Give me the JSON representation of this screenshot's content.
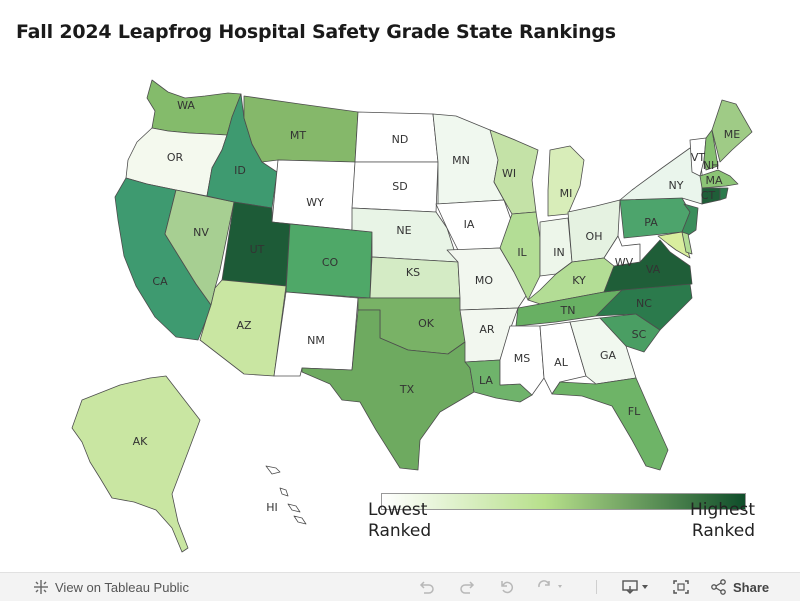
{
  "title": "Fall 2024 Leapfrog Hospital Safety Grade State Rankings",
  "legend": {
    "low_label": "Lowest\nRanked",
    "high_label": "Highest\nRanked",
    "color_low": "#ffffff",
    "color_mid": "#b7e08b",
    "color_high": "#0f4d2a"
  },
  "states": {
    "WA": {
      "label": "WA",
      "color": "#84bb6b"
    },
    "OR": {
      "label": "OR",
      "color": "#f4f9ee"
    },
    "CA": {
      "label": "CA",
      "color": "#3e9a70"
    },
    "NV": {
      "label": "NV",
      "color": "#a7cf92"
    },
    "ID": {
      "label": "ID",
      "color": "#3e9a70"
    },
    "MT": {
      "label": "MT",
      "color": "#85b86a"
    },
    "WY": {
      "label": "WY",
      "color": "#ffffff"
    },
    "UT": {
      "label": "UT",
      "color": "#1d5b37"
    },
    "AZ": {
      "label": "AZ",
      "color": "#c9e6a2"
    },
    "CO": {
      "label": "CO",
      "color": "#4fa868"
    },
    "NM": {
      "label": "NM",
      "color": "#ffffff"
    },
    "ND": {
      "label": "ND",
      "color": "#ffffff"
    },
    "SD": {
      "label": "SD",
      "color": "#ffffff"
    },
    "NE": {
      "label": "NE",
      "color": "#e8f4e6"
    },
    "KS": {
      "label": "KS",
      "color": "#d4ebc5"
    },
    "OK": {
      "label": "OK",
      "color": "#79b266"
    },
    "TX": {
      "label": "TX",
      "color": "#6eaa60"
    },
    "MN": {
      "label": "MN",
      "color": "#f0f8ef"
    },
    "IA": {
      "label": "IA",
      "color": "#ffffff"
    },
    "MO": {
      "label": "MO",
      "color": "#f2f7ef"
    },
    "AR": {
      "label": "AR",
      "color": "#f2f7ef"
    },
    "LA": {
      "label": "LA",
      "color": "#6fb36b"
    },
    "WI": {
      "label": "WI",
      "color": "#c4e2a7"
    },
    "IL": {
      "label": "IL",
      "color": "#b3dd95"
    },
    "MI": {
      "label": "MI",
      "color": "#d8edb9"
    },
    "IN": {
      "label": "IN",
      "color": "#edf6ea"
    },
    "OH": {
      "label": "OH",
      "color": "#e5f2e1"
    },
    "KY": {
      "label": "KY",
      "color": "#b3dd95"
    },
    "TN": {
      "label": "TN",
      "color": "#68b063"
    },
    "MS": {
      "label": "MS",
      "color": "#ffffff"
    },
    "AL": {
      "label": "AL",
      "color": "#ffffff"
    },
    "GA": {
      "label": "GA",
      "color": "#f1f8ef"
    },
    "FL": {
      "label": "FL",
      "color": "#6eb467"
    },
    "SC": {
      "label": "SC",
      "color": "#4a9e63"
    },
    "NC": {
      "label": "NC",
      "color": "#2b7a4c"
    },
    "VA": {
      "label": "VA",
      "color": "#1f5e38"
    },
    "WV": {
      "label": "WV",
      "color": "#ffffff"
    },
    "PA": {
      "label": "PA",
      "color": "#4da46c"
    },
    "NY": {
      "label": "NY",
      "color": "#eaf5ec"
    },
    "VT": {
      "label": "VT",
      "color": "#ffffff"
    },
    "NH": {
      "label": "NH",
      "color": "#86c070"
    },
    "ME": {
      "label": "ME",
      "color": "#9fcb86"
    },
    "MA": {
      "label": "MA",
      "color": "#8cc476"
    },
    "CT": {
      "label": "CT",
      "color": "#1f5e38"
    },
    "RI": {
      "label": "",
      "color": "#2b7a4c"
    },
    "NJ": {
      "label": "",
      "color": "#3a8d5b"
    },
    "DE": {
      "label": "",
      "color": "#b3dd95"
    },
    "MD": {
      "label": "",
      "color": "#d9ee9e"
    },
    "AK": {
      "label": "AK",
      "color": "#c9e6a2"
    },
    "HI": {
      "label": "HI",
      "color": "#ffffff"
    }
  },
  "toolbar": {
    "view_label": "View on Tableau Public",
    "share_label": "Share",
    "icons": [
      "tableau-logo-icon",
      "undo-icon",
      "redo-icon",
      "revert-icon",
      "refresh-icon",
      "download-icon",
      "fullscreen-icon",
      "share-icon"
    ]
  }
}
